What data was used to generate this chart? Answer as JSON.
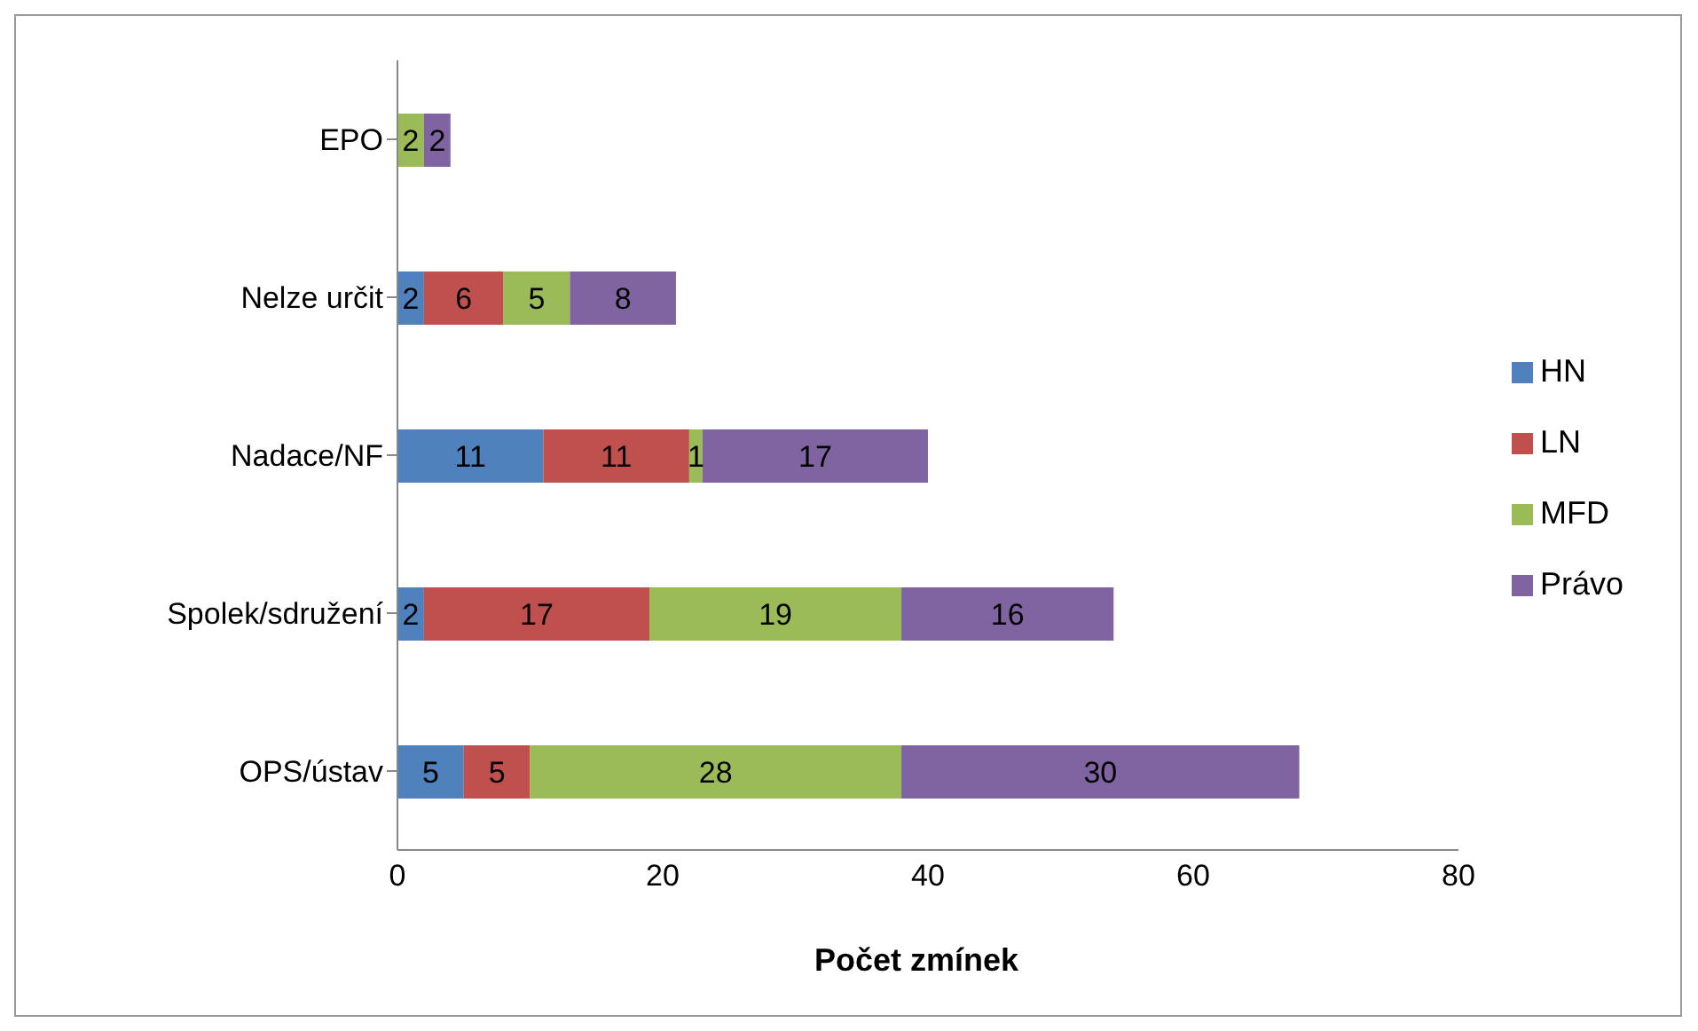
{
  "chart_data": {
    "type": "bar",
    "orientation": "horizontal",
    "stacked": true,
    "xlabel": "Počet zmínek",
    "categories": [
      "EPO",
      "Nelze určit",
      "Nadace/NF",
      "Spolek/sdružení",
      "OPS/ústav"
    ],
    "series": [
      {
        "name": "HN",
        "color": "#4f81bd",
        "values": [
          null,
          2,
          11,
          2,
          5
        ]
      },
      {
        "name": "LN",
        "color": "#c0504d",
        "values": [
          null,
          6,
          11,
          17,
          5
        ]
      },
      {
        "name": "MFD",
        "color": "#9bbb59",
        "values": [
          2,
          5,
          1,
          19,
          28
        ]
      },
      {
        "name": "Právo",
        "color": "#8064a2",
        "values": [
          2,
          8,
          17,
          16,
          30
        ]
      }
    ],
    "xlim": [
      0,
      80
    ],
    "xticks": [
      0,
      20,
      40,
      60,
      80
    ],
    "grid": false,
    "legend": "right",
    "data_labels": true
  }
}
